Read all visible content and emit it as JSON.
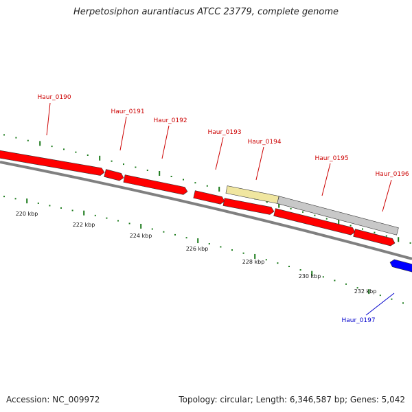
{
  "title": "Herpetosiphon aurantiacus ATCC 23779, complete genome",
  "colors": {
    "forward_gene": "#ff0000",
    "reverse_gene": "#0000ff",
    "pseudo_gene": "#f0e6a0",
    "rna_feature": "#c8c8c8",
    "backbone": "#808080",
    "tick": "#1a7a1a",
    "label_forward": "#cc0000",
    "label_reverse": "#0000cc"
  },
  "genes": [
    {
      "id": "Haur_0190",
      "strand": "+",
      "color_key": "forward_gene"
    },
    {
      "id": "Haur_0191",
      "strand": "+",
      "color_key": "forward_gene"
    },
    {
      "id": "Haur_0192",
      "strand": "+",
      "color_key": "forward_gene"
    },
    {
      "id": "Haur_0193",
      "strand": "+",
      "color_key": "forward_gene"
    },
    {
      "id": "Haur_0194",
      "strand": "+",
      "color_key": "pseudo_gene"
    },
    {
      "id": "Haur_0195",
      "strand": "+",
      "color_key": "rna_feature"
    },
    {
      "id": "Haur_0196",
      "strand": "+",
      "color_key": "forward_gene"
    },
    {
      "id": "Haur_0197",
      "strand": "-",
      "color_key": "reverse_gene"
    }
  ],
  "scale_labels": [
    "220 kbp",
    "222 kbp",
    "224 kbp",
    "226 kbp",
    "228 kbp",
    "230 kbp",
    "232 kbp"
  ],
  "footer": {
    "accession": "Accession: NC_009972",
    "stats": "Topology: circular; Length: 6,346,587 bp; Genes: 5,042"
  }
}
